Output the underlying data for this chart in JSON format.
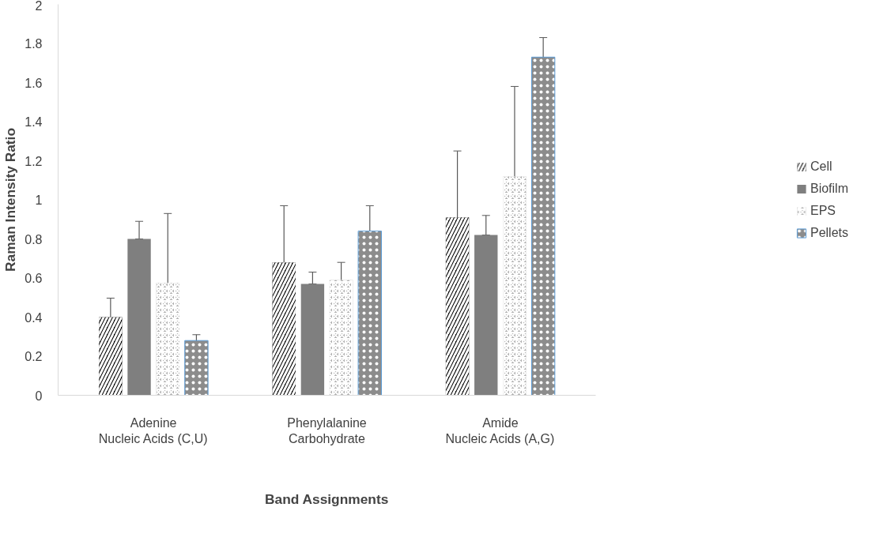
{
  "chart_data": {
    "type": "bar",
    "xlabel": "Band Assignments",
    "ylabel": "Raman Intensity Ratio",
    "categories": [
      "Adenine\nNucleic Acids (C,U)",
      "Phenylalanine\nCarbohydrate",
      "Amide\nNucleic Acids (A,G)"
    ],
    "series": [
      {
        "name": "Cell",
        "color": "#000000",
        "values": [
          0.4,
          0.68,
          0.91
        ],
        "errors": [
          [
            0.29,
            0.497
          ],
          [
            0.39,
            0.97
          ],
          [
            0.58,
            1.25
          ]
        ]
      },
      {
        "name": "Biofilm",
        "color": "#7f7f7f",
        "values": [
          0.8,
          0.57,
          0.82
        ],
        "errors": [
          [
            0.8,
            0.89
          ],
          [
            0.57,
            0.63
          ],
          [
            0.82,
            0.92
          ]
        ]
      },
      {
        "name": "EPS",
        "color": "#b0b0b0",
        "values": [
          0.575,
          0.59,
          1.12
        ],
        "errors": [
          [
            0.22,
            0.93
          ],
          [
            0.5,
            0.68
          ],
          [
            0.67,
            1.58
          ]
        ]
      },
      {
        "name": "Pellets",
        "color": "#8c8c8c",
        "values": [
          0.28,
          0.84,
          1.73
        ],
        "errors": [
          [
            0.25,
            0.31
          ],
          [
            0.71,
            0.97
          ],
          [
            1.63,
            1.83
          ]
        ]
      }
    ],
    "ylim": [
      0,
      2
    ],
    "yticks": [
      0,
      0.2,
      0.4,
      0.6,
      0.8,
      1,
      1.2,
      1.4,
      1.6,
      1.8,
      2
    ],
    "grid": false,
    "legend": "right"
  }
}
